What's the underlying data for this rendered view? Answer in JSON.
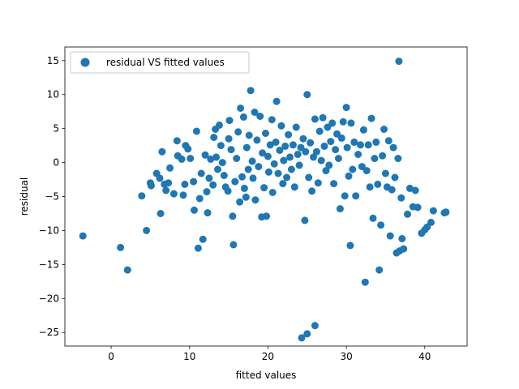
{
  "chart_data": {
    "type": "scatter",
    "title": "",
    "xlabel": "fitted values",
    "ylabel": "residual",
    "xlim": [
      -5.9,
      45.4
    ],
    "ylim": [
      -27.0,
      17.0
    ],
    "xticks": [
      0,
      10,
      20,
      30,
      40
    ],
    "yticks": [
      -25,
      -20,
      -15,
      -10,
      -5,
      0,
      5,
      10,
      15
    ],
    "xtick_labels": [
      "0",
      "10",
      "20",
      "30",
      "40"
    ],
    "ytick_labels": [
      "−25",
      "−20",
      "−15",
      "−10",
      "−5",
      "0",
      "5",
      "10",
      "15"
    ],
    "grid": false,
    "legend_position": "top-left",
    "series": [
      {
        "name": "residual VS fitted values",
        "color": "#1f77b4",
        "points": [
          [
            -3.6,
            -10.8
          ],
          [
            1.2,
            -12.5
          ],
          [
            2.1,
            -15.8
          ],
          [
            3.9,
            -4.9
          ],
          [
            4.5,
            -10.0
          ],
          [
            5.0,
            -3.0
          ],
          [
            5.1,
            -3.4
          ],
          [
            5.8,
            -1.6
          ],
          [
            6.2,
            -2.3
          ],
          [
            6.3,
            -7.5
          ],
          [
            6.5,
            1.6
          ],
          [
            6.8,
            -3.2
          ],
          [
            7.0,
            -4.1
          ],
          [
            7.3,
            -3.0
          ],
          [
            7.5,
            -0.8
          ],
          [
            8.0,
            -4.6
          ],
          [
            8.4,
            3.2
          ],
          [
            8.5,
            1.0
          ],
          [
            9.0,
            0.5
          ],
          [
            9.2,
            -4.8
          ],
          [
            9.5,
            2.5
          ],
          [
            9.8,
            2.0
          ],
          [
            9.4,
            -3.2
          ],
          [
            10.1,
            0.6
          ],
          [
            10.5,
            -2.8
          ],
          [
            10.6,
            -7.0
          ],
          [
            10.9,
            4.6
          ],
          [
            11.1,
            -12.6
          ],
          [
            11.3,
            -5.3
          ],
          [
            11.5,
            -1.6
          ],
          [
            11.7,
            -11.3
          ],
          [
            12.0,
            1.1
          ],
          [
            12.2,
            -4.3
          ],
          [
            12.3,
            -7.4
          ],
          [
            12.5,
            -2.3
          ],
          [
            12.7,
            0.5
          ],
          [
            13.0,
            -3.3
          ],
          [
            13.1,
            3.7
          ],
          [
            13.3,
            4.9
          ],
          [
            13.4,
            0.8
          ],
          [
            13.6,
            -1.0
          ],
          [
            13.8,
            5.5
          ],
          [
            14.0,
            2.5
          ],
          [
            14.2,
            0.0
          ],
          [
            14.4,
            -1.9
          ],
          [
            14.6,
            -3.6
          ],
          [
            14.9,
            -4.2
          ],
          [
            15.0,
            3.5
          ],
          [
            15.1,
            6.2
          ],
          [
            15.3,
            1.9
          ],
          [
            15.5,
            -7.9
          ],
          [
            15.6,
            -12.1
          ],
          [
            15.8,
            -2.8
          ],
          [
            16.0,
            0.6
          ],
          [
            16.2,
            4.5
          ],
          [
            16.4,
            -5.8
          ],
          [
            16.5,
            8.0
          ],
          [
            16.7,
            -2.1
          ],
          [
            16.9,
            6.7
          ],
          [
            17.0,
            -3.8
          ],
          [
            17.2,
            -5.1
          ],
          [
            17.3,
            2.2
          ],
          [
            17.5,
            -1.0
          ],
          [
            17.6,
            4.0
          ],
          [
            17.8,
            10.6
          ],
          [
            18.0,
            0.2
          ],
          [
            18.1,
            -2.3
          ],
          [
            18.3,
            7.4
          ],
          [
            18.4,
            -5.5
          ],
          [
            18.6,
            3.3
          ],
          [
            18.8,
            -0.6
          ],
          [
            19.0,
            6.8
          ],
          [
            19.2,
            -8.0
          ],
          [
            19.3,
            1.4
          ],
          [
            19.5,
            -3.7
          ],
          [
            19.7,
            4.3
          ],
          [
            19.8,
            -7.9
          ],
          [
            20.0,
            0.9
          ],
          [
            20.1,
            -1.4
          ],
          [
            20.3,
            2.6
          ],
          [
            20.5,
            6.3
          ],
          [
            20.6,
            -4.4
          ],
          [
            20.8,
            -0.2
          ],
          [
            21.0,
            3.0
          ],
          [
            21.1,
            9.0
          ],
          [
            21.3,
            -1.6
          ],
          [
            21.5,
            1.8
          ],
          [
            21.7,
            5.4
          ],
          [
            21.9,
            -3.1
          ],
          [
            22.0,
            0.3
          ],
          [
            22.2,
            2.4
          ],
          [
            22.4,
            -2.2
          ],
          [
            22.6,
            4.1
          ],
          [
            22.8,
            0.8
          ],
          [
            23.0,
            -1.0
          ],
          [
            23.2,
            2.6
          ],
          [
            23.4,
            -3.6
          ],
          [
            23.6,
            5.2
          ],
          [
            23.8,
            1.2
          ],
          [
            24.0,
            -0.4
          ],
          [
            24.2,
            2.2
          ],
          [
            24.3,
            -25.8
          ],
          [
            24.5,
            3.5
          ],
          [
            24.7,
            -8.5
          ],
          [
            24.8,
            1.6
          ],
          [
            25.0,
            10.0
          ],
          [
            25.0,
            -25.2
          ],
          [
            25.2,
            -2.2
          ],
          [
            25.4,
            2.9
          ],
          [
            25.6,
            -4.2
          ],
          [
            25.8,
            0.8
          ],
          [
            26.0,
            6.4
          ],
          [
            26.0,
            -24.0
          ],
          [
            26.2,
            1.6
          ],
          [
            26.4,
            -3.0
          ],
          [
            26.6,
            4.6
          ],
          [
            26.8,
            0.3
          ],
          [
            27.0,
            6.6
          ],
          [
            27.2,
            2.4
          ],
          [
            27.4,
            -1.2
          ],
          [
            27.6,
            5.2
          ],
          [
            27.8,
            -0.4
          ],
          [
            28.0,
            3.1
          ],
          [
            28.2,
            5.8
          ],
          [
            28.4,
            -3.1
          ],
          [
            28.6,
            1.9
          ],
          [
            28.8,
            4.2
          ],
          [
            29.0,
            0.6
          ],
          [
            29.2,
            -6.8
          ],
          [
            29.4,
            3.6
          ],
          [
            29.6,
            6.0
          ],
          [
            29.8,
            -4.9
          ],
          [
            30.0,
            8.1
          ],
          [
            30.1,
            2.2
          ],
          [
            30.3,
            -2.0
          ],
          [
            30.5,
            -12.2
          ],
          [
            30.6,
            5.8
          ],
          [
            30.8,
            -1.0
          ],
          [
            31.0,
            3.0
          ],
          [
            31.2,
            -4.9
          ],
          [
            31.5,
            1.2
          ],
          [
            31.8,
            2.6
          ],
          [
            32.0,
            -0.6
          ],
          [
            32.2,
            4.8
          ],
          [
            32.4,
            -17.6
          ],
          [
            32.6,
            -1.2
          ],
          [
            32.8,
            2.6
          ],
          [
            33.0,
            -3.6
          ],
          [
            33.2,
            6.5
          ],
          [
            33.4,
            -8.2
          ],
          [
            33.6,
            0.6
          ],
          [
            33.8,
            3.0
          ],
          [
            34.0,
            -3.2
          ],
          [
            34.2,
            -15.8
          ],
          [
            34.4,
            -9.2
          ],
          [
            34.6,
            1.0
          ],
          [
            34.8,
            4.9
          ],
          [
            35.0,
            -1.6
          ],
          [
            35.2,
            -3.6
          ],
          [
            35.4,
            3.2
          ],
          [
            35.6,
            -10.8
          ],
          [
            35.8,
            -4.0
          ],
          [
            36.0,
            2.2
          ],
          [
            36.2,
            -2.2
          ],
          [
            36.4,
            -13.3
          ],
          [
            36.6,
            0.6
          ],
          [
            36.7,
            14.9
          ],
          [
            36.8,
            -13.0
          ],
          [
            37.0,
            -5.2
          ],
          [
            37.1,
            -11.2
          ],
          [
            37.3,
            -12.7
          ],
          [
            37.8,
            -7.6
          ],
          [
            38.1,
            -3.8
          ],
          [
            38.5,
            -6.5
          ],
          [
            38.8,
            -4.1
          ],
          [
            39.1,
            -6.6
          ],
          [
            39.6,
            -10.4
          ],
          [
            40.0,
            -9.9
          ],
          [
            40.3,
            -9.5
          ],
          [
            40.8,
            -8.8
          ],
          [
            41.1,
            -7.1
          ],
          [
            42.5,
            -7.4
          ],
          [
            42.7,
            -7.3
          ]
        ]
      }
    ]
  }
}
